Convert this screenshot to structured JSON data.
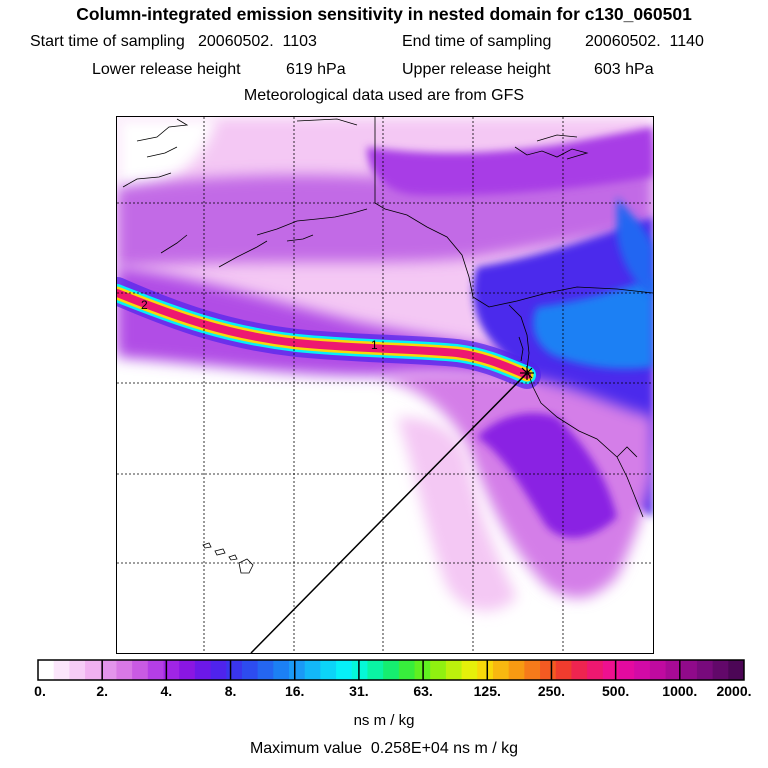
{
  "title": "Column-integrated emission sensitivity in nested domain for c130_060501",
  "info": {
    "start_label": "Start time of sampling",
    "start_value": "20060502.  1103",
    "end_label": "End time of sampling",
    "end_value": "20060502.  1140",
    "lower_label": "Lower release height",
    "lower_value": "619 hPa",
    "upper_label": "Upper release height",
    "upper_value": "603 hPa",
    "met_source": "Meteorological data used are from GFS"
  },
  "map": {
    "trajectory_markers": [
      "2",
      "1"
    ],
    "release_marker": "release-point",
    "colors": {
      "background": "#ffffff",
      "coast": "#000000",
      "grid": "#000000"
    }
  },
  "colorbar": {
    "labels": [
      "0.",
      "2.",
      "4.",
      "8.",
      "16.",
      "31.",
      "63.",
      "125.",
      "250.",
      "500.",
      "1000.",
      "2000."
    ],
    "units": "ns m / kg",
    "colors": [
      "#ffffff",
      "#fbe6fb",
      "#f6ccf6",
      "#f0b0f0",
      "#e394ec",
      "#d878e6",
      "#c95ae4",
      "#b43ee6",
      "#a025e6",
      "#8a16e3",
      "#6c18e8",
      "#4f23ec",
      "#3a35ee",
      "#2d4cf0",
      "#2466f2",
      "#1c80f4",
      "#1a9af6",
      "#13b8f8",
      "#0cd4f8",
      "#06f0f8",
      "#05f8d8",
      "#0af4a4",
      "#16ee70",
      "#38ee3c",
      "#60f020",
      "#90f210",
      "#bcf20c",
      "#e6f00a",
      "#f8d80a",
      "#f8b810",
      "#f89a12",
      "#f67a1a",
      "#f45a22",
      "#f03c2e",
      "#ee2450",
      "#ee1870",
      "#ee1090",
      "#e40aa0",
      "#d20aa6",
      "#c00aa0",
      "#a80a96",
      "#900a8a",
      "#780a7c",
      "#62086a",
      "#4c0656"
    ]
  },
  "max_value": {
    "label": "Maximum value",
    "value": "0.258E+04 ns m / kg"
  }
}
